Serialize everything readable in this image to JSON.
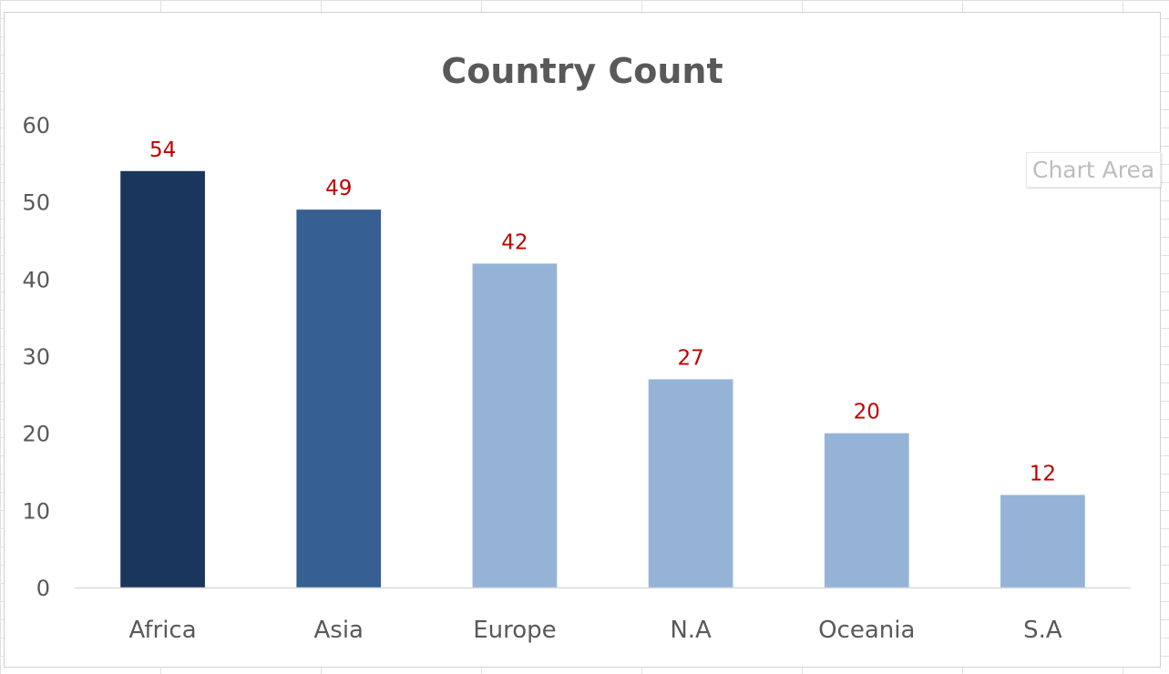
{
  "colors": {
    "bar_dark": "#1b365d",
    "bar_mid": "#376092",
    "bar_light": "#95b3d7",
    "data_label": "#c00000",
    "axis_text": "#595959",
    "axis_line": "#d9d9d9"
  },
  "tooltip": {
    "label": "Chart Area"
  },
  "chart_data": {
    "type": "bar",
    "title": "Country Count",
    "xlabel": "",
    "ylabel": "",
    "categories": [
      "Africa",
      "Asia",
      "Europe",
      "N.A",
      "Oceania",
      "S.A"
    ],
    "values": [
      54,
      49,
      42,
      27,
      20,
      12
    ],
    "bar_colors": [
      "#1b365d",
      "#376092",
      "#95b3d7",
      "#95b3d7",
      "#95b3d7",
      "#95b3d7"
    ],
    "ylim": [
      0,
      60
    ],
    "yticks": [
      "0",
      "10",
      "20",
      "30",
      "40",
      "50",
      "60"
    ],
    "grid": false,
    "legend": "none",
    "data_labels": true
  }
}
